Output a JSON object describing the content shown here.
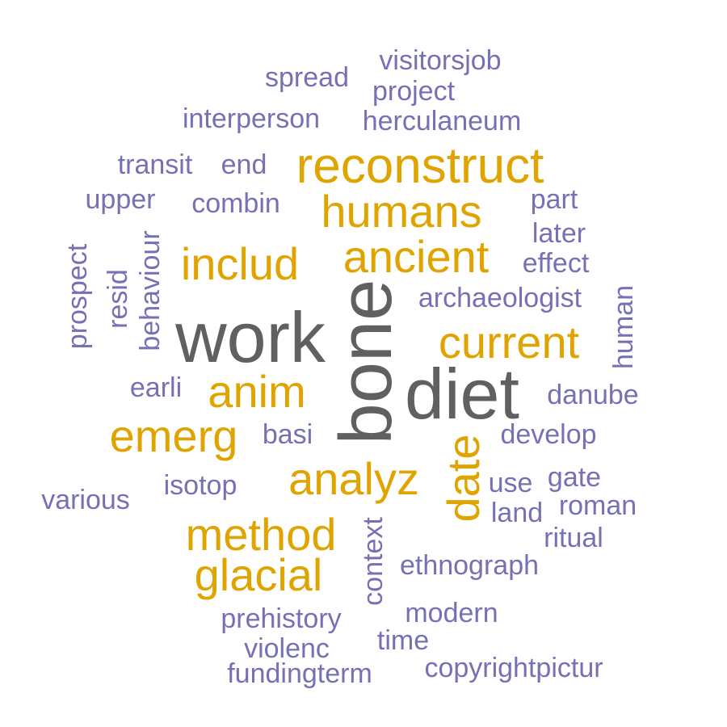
{
  "palette": {
    "background": "#ffffff",
    "gray": "#5f6062",
    "gold": "#e0a400",
    "purple": "#7571b4"
  },
  "words": [
    {
      "text": "bone",
      "color": "gray",
      "rotated": true
    },
    {
      "text": "work",
      "color": "gray",
      "rotated": false
    },
    {
      "text": "diet",
      "color": "gray",
      "rotated": false
    },
    {
      "text": "reconstruct",
      "color": "gold",
      "rotated": false
    },
    {
      "text": "humans",
      "color": "gold",
      "rotated": false
    },
    {
      "text": "ancient",
      "color": "gold",
      "rotated": false
    },
    {
      "text": "includ",
      "color": "gold",
      "rotated": false
    },
    {
      "text": "current",
      "color": "gold",
      "rotated": false
    },
    {
      "text": "anim",
      "color": "gold",
      "rotated": false
    },
    {
      "text": "emerg",
      "color": "gold",
      "rotated": false
    },
    {
      "text": "analyz",
      "color": "gold",
      "rotated": false
    },
    {
      "text": "date",
      "color": "gold",
      "rotated": true
    },
    {
      "text": "method",
      "color": "gold",
      "rotated": false
    },
    {
      "text": "glacial",
      "color": "gold",
      "rotated": false
    },
    {
      "text": "visitorsjob",
      "color": "purple",
      "rotated": false
    },
    {
      "text": "spread",
      "color": "purple",
      "rotated": false
    },
    {
      "text": "project",
      "color": "purple",
      "rotated": false
    },
    {
      "text": "interperson",
      "color": "purple",
      "rotated": false
    },
    {
      "text": "herculaneum",
      "color": "purple",
      "rotated": false
    },
    {
      "text": "transit",
      "color": "purple",
      "rotated": false
    },
    {
      "text": "end",
      "color": "purple",
      "rotated": false
    },
    {
      "text": "upper",
      "color": "purple",
      "rotated": false
    },
    {
      "text": "combin",
      "color": "purple",
      "rotated": false
    },
    {
      "text": "part",
      "color": "purple",
      "rotated": false
    },
    {
      "text": "later",
      "color": "purple",
      "rotated": false
    },
    {
      "text": "effect",
      "color": "purple",
      "rotated": false
    },
    {
      "text": "prospect",
      "color": "purple",
      "rotated": true
    },
    {
      "text": "resid",
      "color": "purple",
      "rotated": true
    },
    {
      "text": "behaviour",
      "color": "purple",
      "rotated": true
    },
    {
      "text": "archaeologist",
      "color": "purple",
      "rotated": false
    },
    {
      "text": "human",
      "color": "purple",
      "rotated": true
    },
    {
      "text": "earli",
      "color": "purple",
      "rotated": false
    },
    {
      "text": "danube",
      "color": "purple",
      "rotated": false
    },
    {
      "text": "basi",
      "color": "purple",
      "rotated": false
    },
    {
      "text": "develop",
      "color": "purple",
      "rotated": false
    },
    {
      "text": "various",
      "color": "purple",
      "rotated": false
    },
    {
      "text": "isotop",
      "color": "purple",
      "rotated": false
    },
    {
      "text": "use",
      "color": "purple",
      "rotated": false
    },
    {
      "text": "gate",
      "color": "purple",
      "rotated": false
    },
    {
      "text": "land",
      "color": "purple",
      "rotated": false
    },
    {
      "text": "roman",
      "color": "purple",
      "rotated": false
    },
    {
      "text": "ritual",
      "color": "purple",
      "rotated": false
    },
    {
      "text": "context",
      "color": "purple",
      "rotated": true
    },
    {
      "text": "ethnograph",
      "color": "purple",
      "rotated": false
    },
    {
      "text": "prehistory",
      "color": "purple",
      "rotated": false
    },
    {
      "text": "modern",
      "color": "purple",
      "rotated": false
    },
    {
      "text": "violenc",
      "color": "purple",
      "rotated": false
    },
    {
      "text": "time",
      "color": "purple",
      "rotated": false
    },
    {
      "text": "fundingterm",
      "color": "purple",
      "rotated": false
    },
    {
      "text": "copyrightpictur",
      "color": "purple",
      "rotated": false
    }
  ]
}
